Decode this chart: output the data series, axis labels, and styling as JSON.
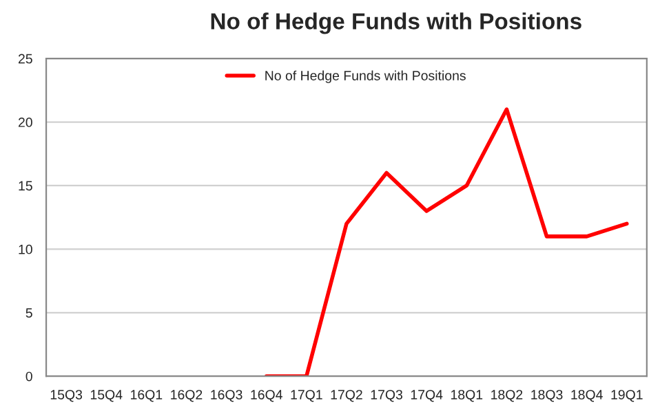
{
  "chart_data": {
    "type": "line",
    "title": "No of Hedge Funds with Positions",
    "categories": [
      "15Q3",
      "15Q4",
      "16Q1",
      "16Q2",
      "16Q3",
      "16Q4",
      "17Q1",
      "17Q2",
      "17Q3",
      "17Q4",
      "18Q1",
      "18Q2",
      "18Q3",
      "18Q4",
      "19Q1"
    ],
    "series": [
      {
        "name": "No of Hedge Funds with Positions",
        "color": "#ff0000",
        "values": [
          null,
          null,
          null,
          null,
          null,
          0,
          0,
          12,
          16,
          13,
          15,
          21,
          11,
          11,
          12
        ]
      }
    ],
    "ylim": [
      0,
      25
    ],
    "yticks": [
      0,
      5,
      10,
      15,
      20,
      25
    ],
    "grid": "y",
    "legend": "top",
    "marker": "none",
    "line_style": "solid"
  }
}
